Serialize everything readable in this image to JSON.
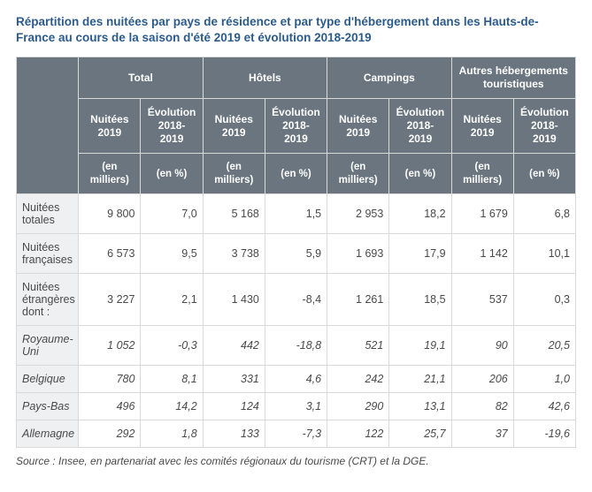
{
  "title": "Répartition des nuitées par pays de résidence et par type d'hébergement dans les Hauts-de-France au cours de la saison d'été 2019 et évolution 2018-2019",
  "groups": [
    "Total",
    "Hôtels",
    "Campings",
    "Autres hébergements touristiques"
  ],
  "subheads": {
    "n": "Nuitées 2019",
    "e": "Évolution 2018-2019"
  },
  "units": {
    "n": "(en milliers)",
    "e": "(en %)"
  },
  "rows": [
    {
      "label": "Nuitées totales",
      "sub": false,
      "v": [
        "9 800",
        "7,0",
        "5 168",
        "1,5",
        "2 953",
        "18,2",
        "1 679",
        "6,8"
      ]
    },
    {
      "label": "Nuitées françaises",
      "sub": false,
      "v": [
        "6 573",
        "9,5",
        "3 738",
        "5,9",
        "1 693",
        "17,9",
        "1 142",
        "10,1"
      ]
    },
    {
      "label": "Nuitées étrangères dont :",
      "sub": false,
      "v": [
        "3 227",
        "2,1",
        "1 430",
        "-8,4",
        "1 261",
        "18,5",
        "537",
        "0,3"
      ]
    },
    {
      "label": "Royaume-Uni",
      "sub": true,
      "v": [
        "1 052",
        "-0,3",
        "442",
        "-18,8",
        "521",
        "19,1",
        "90",
        "20,5"
      ]
    },
    {
      "label": "Belgique",
      "sub": true,
      "v": [
        "780",
        "8,1",
        "331",
        "4,6",
        "242",
        "21,1",
        "206",
        "1,0"
      ]
    },
    {
      "label": "Pays-Bas",
      "sub": true,
      "v": [
        "496",
        "14,2",
        "124",
        "3,1",
        "290",
        "13,1",
        "82",
        "42,6"
      ]
    },
    {
      "label": "Allemagne",
      "sub": true,
      "v": [
        "292",
        "1,8",
        "133",
        "-7,3",
        "122",
        "25,7",
        "37",
        "-19,6"
      ]
    }
  ],
  "source": "Source : Insee, en partenariat avec les comités régionaux du tourisme (CRT) et la DGE.",
  "colors": {
    "title": "#2b5b8c",
    "header_bg": "#6a7580",
    "header_fg": "#ffffff",
    "rowlabel_bg": "#eef0f2",
    "border": "#d9d9d9",
    "text": "#4a4a4a"
  }
}
